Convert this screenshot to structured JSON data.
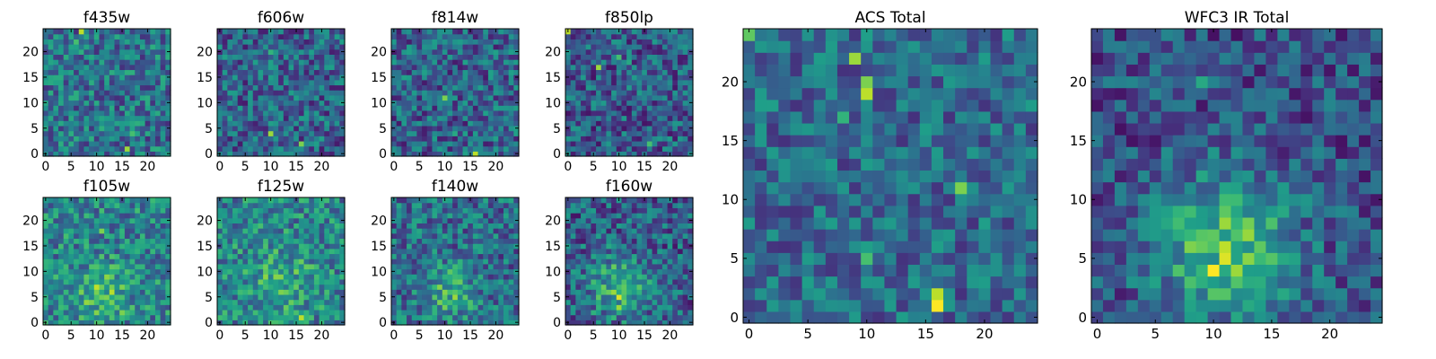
{
  "chart_data": [
    {
      "type": "heatmap",
      "title": "f435w",
      "colormap": "viridis",
      "grid": false,
      "xticks": [
        0,
        5,
        10,
        15,
        20
      ],
      "yticks": [
        0,
        5,
        10,
        15,
        20
      ],
      "xlim": [
        0,
        25
      ],
      "ylim": [
        0,
        25
      ],
      "hotspots": [
        [
          7,
          24,
          0.9
        ],
        [
          16,
          1,
          0.85
        ],
        [
          17,
          4,
          0.7
        ],
        [
          6,
          22,
          0.7
        ],
        [
          3,
          6,
          0.6
        ],
        [
          20,
          16,
          0.55
        ]
      ],
      "base": 0.38,
      "blob": null
    },
    {
      "type": "heatmap",
      "title": "f606w",
      "colormap": "viridis",
      "grid": false,
      "xticks": [
        0,
        5,
        10,
        15,
        20
      ],
      "yticks": [
        0,
        5,
        10,
        15,
        20
      ],
      "xlim": [
        0,
        25
      ],
      "ylim": [
        0,
        25
      ],
      "hotspots": [
        [
          10,
          4,
          0.85
        ],
        [
          16,
          2,
          0.8
        ],
        [
          10,
          20,
          0.65
        ],
        [
          3,
          12,
          0.55
        ]
      ],
      "base": 0.32,
      "blob": null
    },
    {
      "type": "heatmap",
      "title": "f814w",
      "colormap": "viridis",
      "grid": false,
      "xticks": [
        0,
        5,
        10,
        15,
        20
      ],
      "yticks": [
        0,
        5,
        10,
        15,
        20
      ],
      "xlim": [
        0,
        25
      ],
      "ylim": [
        0,
        25
      ],
      "hotspots": [
        [
          16,
          0,
          0.9
        ],
        [
          10,
          11,
          0.8
        ],
        [
          12,
          4,
          0.6
        ],
        [
          4,
          9,
          0.55
        ]
      ],
      "base": 0.32,
      "blob": null
    },
    {
      "type": "heatmap",
      "title": "f850lp",
      "colormap": "viridis",
      "grid": false,
      "xticks": [
        0,
        5,
        10,
        15,
        20
      ],
      "yticks": [
        0,
        5,
        10,
        15,
        20
      ],
      "xlim": [
        0,
        25
      ],
      "ylim": [
        0,
        25
      ],
      "hotspots": [
        [
          0,
          24,
          0.9
        ],
        [
          6,
          17,
          0.85
        ],
        [
          10,
          19,
          0.7
        ],
        [
          16,
          2,
          0.7
        ],
        [
          12,
          18,
          0.6
        ]
      ],
      "base": 0.3,
      "blob": null
    },
    {
      "type": "heatmap",
      "title": "f105w",
      "colormap": "viridis",
      "grid": false,
      "xticks": [
        0,
        5,
        10,
        15,
        20
      ],
      "yticks": [
        0,
        5,
        10,
        15,
        20
      ],
      "xlim": [
        0,
        25
      ],
      "ylim": [
        0,
        25
      ],
      "hotspots": [
        [
          11,
          18,
          0.8
        ],
        [
          15,
          2,
          0.8
        ],
        [
          10,
          5,
          0.7
        ],
        [
          3,
          2,
          0.6
        ]
      ],
      "base": 0.45,
      "blob": [
        11,
        6,
        5,
        0.25
      ]
    },
    {
      "type": "heatmap",
      "title": "f125w",
      "colormap": "viridis",
      "grid": false,
      "xticks": [
        0,
        5,
        10,
        15,
        20
      ],
      "yticks": [
        0,
        5,
        10,
        15,
        20
      ],
      "xlim": [
        0,
        25
      ],
      "ylim": [
        0,
        25
      ],
      "hotspots": [
        [
          16,
          1,
          0.9
        ],
        [
          10,
          20,
          0.6
        ],
        [
          13,
          6,
          0.55
        ]
      ],
      "base": 0.45,
      "blob": [
        12,
        8,
        6,
        0.2
      ]
    },
    {
      "type": "heatmap",
      "title": "f140w",
      "colormap": "viridis",
      "grid": false,
      "xticks": [
        0,
        5,
        10,
        15,
        20
      ],
      "yticks": [
        0,
        5,
        10,
        15,
        20
      ],
      "xlim": [
        0,
        25
      ],
      "ylim": [
        0,
        25
      ],
      "hotspots": [
        [
          12,
          5,
          0.85
        ],
        [
          10,
          5,
          0.75
        ],
        [
          14,
          5,
          0.7
        ]
      ],
      "base": 0.35,
      "blob": [
        11,
        6,
        5,
        0.3
      ]
    },
    {
      "type": "heatmap",
      "title": "f160w",
      "colormap": "viridis",
      "grid": false,
      "xticks": [
        0,
        5,
        10,
        15,
        20
      ],
      "yticks": [
        0,
        5,
        10,
        15,
        20
      ],
      "xlim": [
        0,
        25
      ],
      "ylim": [
        0,
        25
      ],
      "hotspots": [
        [
          10,
          5,
          0.95
        ],
        [
          10,
          3,
          0.85
        ],
        [
          10,
          19,
          0.55
        ]
      ],
      "base": 0.3,
      "blob": [
        10,
        7,
        6,
        0.35
      ]
    },
    {
      "type": "heatmap",
      "title": "ACS Total",
      "colormap": "viridis",
      "grid": false,
      "xticks": [
        0,
        5,
        10,
        15,
        20
      ],
      "yticks": [
        0,
        5,
        10,
        15,
        20
      ],
      "xlim": [
        0,
        25
      ],
      "ylim": [
        0,
        25
      ],
      "hotspots": [
        [
          16,
          1,
          1.0
        ],
        [
          16,
          2,
          0.9
        ],
        [
          10,
          19,
          0.9
        ],
        [
          9,
          22,
          0.85
        ],
        [
          10,
          20,
          0.8
        ],
        [
          18,
          11,
          0.8
        ],
        [
          0,
          24,
          0.75
        ],
        [
          10,
          5,
          0.7
        ],
        [
          8,
          17,
          0.65
        ]
      ],
      "base": 0.35,
      "blob": null
    },
    {
      "type": "heatmap",
      "title": "WFC3 IR Total",
      "colormap": "viridis",
      "grid": false,
      "xticks": [
        0,
        5,
        10,
        15,
        20
      ],
      "yticks": [
        0,
        5,
        10,
        15,
        20
      ],
      "xlim": [
        0,
        25
      ],
      "ylim": [
        0,
        25
      ],
      "hotspots": [
        [
          10,
          4,
          1.0
        ],
        [
          11,
          5,
          0.95
        ],
        [
          12,
          4,
          0.85
        ],
        [
          9,
          20,
          0.6
        ],
        [
          16,
          2,
          0.6
        ]
      ],
      "base": 0.25,
      "blob": [
        11,
        6,
        6,
        0.45
      ]
    }
  ]
}
